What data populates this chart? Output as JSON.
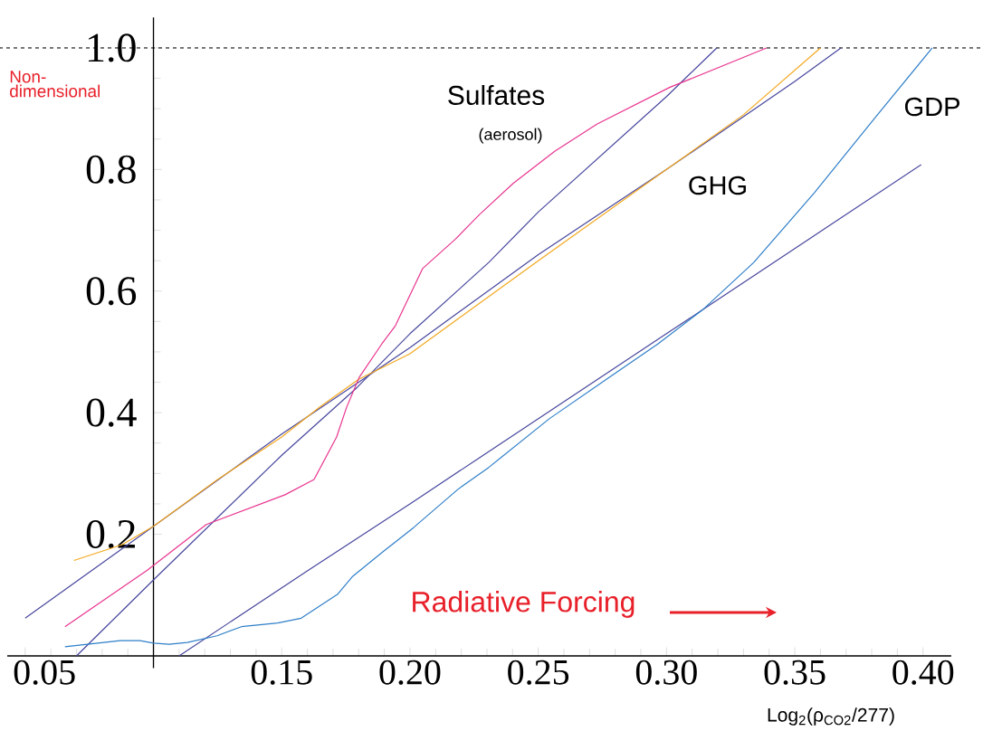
{
  "chart_data": {
    "type": "line",
    "xlabel": "Log$_{2}$(ρ$_{CO2}$/277)",
    "ylabel": "Non-dimensional",
    "xlim": [
      0.043,
      0.411
    ],
    "ylim": [
      -0.02,
      1.05
    ],
    "xticks": [
      0.05,
      {
        "value": 0.1,
        "label": null
      },
      0.15,
      {
        "value": 0.2,
        "label": "0.20"
      },
      0.25,
      {
        "value": 0.3,
        "label": "0.30"
      },
      0.35,
      {
        "value": 0.4,
        "label": "0.40"
      }
    ],
    "yticks": [
      0.2,
      0.4,
      0.6,
      0.8,
      {
        "value": 1,
        "label": "1.0"
      }
    ],
    "ref_lines": [
      {
        "axis": "y",
        "value": 1,
        "color": "#000000",
        "line_style": "dashed"
      }
    ],
    "annotations": [
      "(aerosol)",
      "Radiative Forcing"
    ],
    "series": [
      {
        "color": "#47479e",
        "x": [
          0.05,
          0.1,
          0.15,
          0.2,
          0.25,
          0.3,
          0.35,
          0.368
        ],
        "values": [
          0.062,
          0.213,
          0.365,
          0.507,
          0.66,
          0.8,
          0.945,
          1.0
        ]
      },
      {
        "color": "#47479e",
        "x": [
          0.07,
          0.1,
          0.15,
          0.1795,
          0.2,
          0.2307,
          0.25,
          0.3,
          0.3196
        ],
        "values": [
          0,
          0.125,
          0.33,
          0.442,
          0.53,
          0.647,
          0.73,
          0.92,
          1.0
        ]
      },
      {
        "color": "#47479e",
        "x": [
          0.11,
          0.16,
          0.2,
          0.25,
          0.3,
          0.314,
          0.35,
          0.3993
        ],
        "values": [
          0,
          0.14,
          0.25,
          0.39,
          0.53,
          0.569,
          0.67,
          0.808
        ]
      },
      {
        "name": "GHG",
        "color": "#f4a81f",
        "x": [
          0.069,
          0.0878,
          0.1,
          0.125,
          0.15,
          0.165,
          0.18,
          0.2,
          0.25,
          0.3,
          0.33,
          0.36
        ],
        "values": [
          0.157,
          0.183,
          0.213,
          0.29,
          0.36,
          0.41,
          0.455,
          0.497,
          0.65,
          0.8,
          0.89,
          1.0
        ]
      },
      {
        "name": "Sulfates",
        "color": "#e8358f",
        "x": [
          0.0655,
          0.0976,
          0.1206,
          0.1513,
          0.1626,
          0.1714,
          0.1753,
          0.1802,
          0.189,
          0.1943,
          0.2049,
          0.2176,
          0.2271,
          0.2402,
          0.2564,
          0.273,
          0.3012,
          0.339
        ],
        "values": [
          0.048,
          0.141,
          0.216,
          0.265,
          0.29,
          0.36,
          0.409,
          0.458,
          0.513,
          0.543,
          0.637,
          0.685,
          0.726,
          0.777,
          0.83,
          0.875,
          0.935,
          1.0
        ]
      },
      {
        "name": "GDP",
        "color": "#2f7fc8",
        "x": [
          0.0655,
          0.087,
          0.0948,
          0.1,
          0.1061,
          0.1132,
          0.1248,
          0.1343,
          0.1484,
          0.1576,
          0.1717,
          0.1777,
          0.1894,
          0.2014,
          0.219,
          0.2307,
          0.2543,
          0.2776,
          0.2966,
          0.3143,
          0.334,
          0.3577,
          0.3813,
          0.4036
        ],
        "values": [
          0.015,
          0.025,
          0.025,
          0.021,
          0.019,
          0.022,
          0.033,
          0.048,
          0.054,
          0.062,
          0.101,
          0.131,
          0.171,
          0.211,
          0.275,
          0.31,
          0.39,
          0.458,
          0.513,
          0.57,
          0.647,
          0.762,
          0.885,
          1.0
        ]
      }
    ]
  }
}
